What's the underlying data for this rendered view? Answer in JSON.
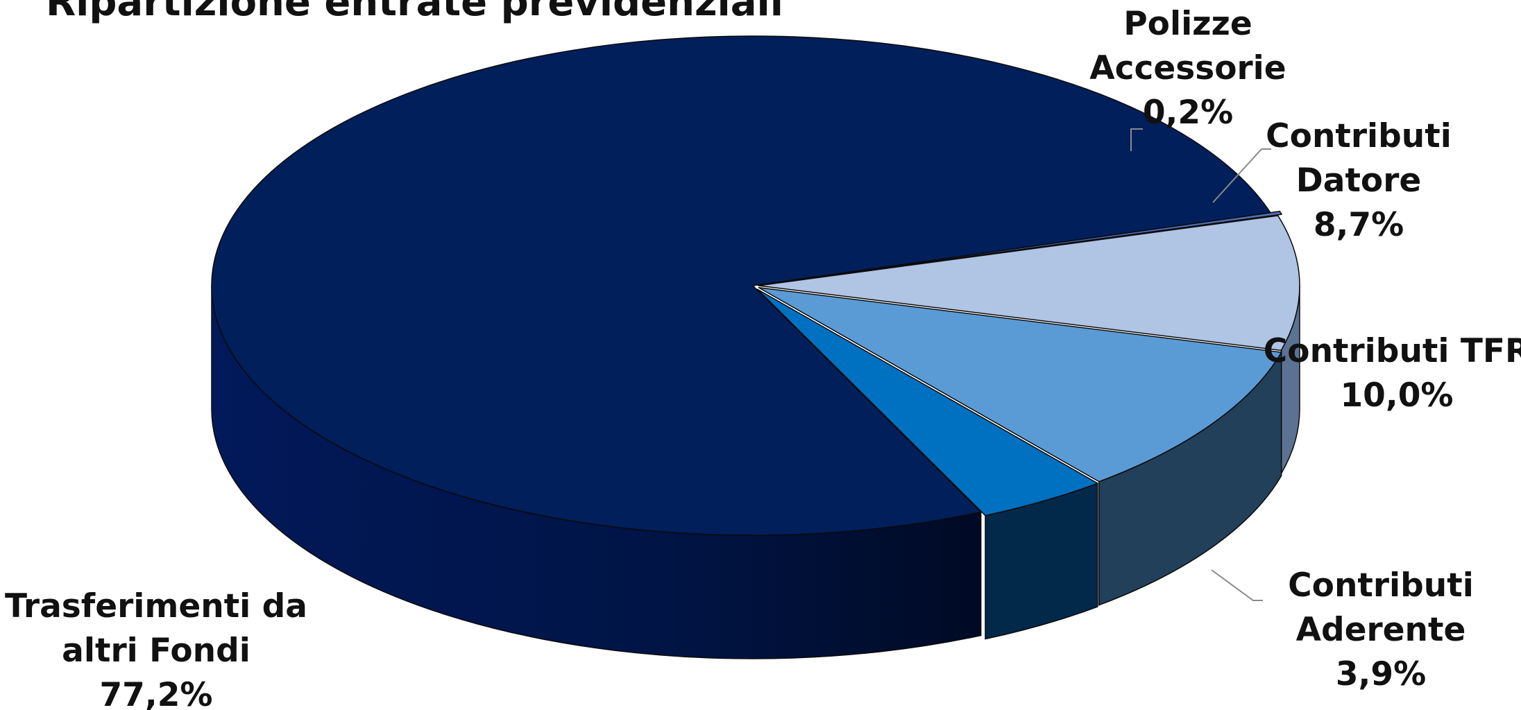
{
  "chart_data": {
    "type": "pie",
    "style": "3d-exploded",
    "title": "Ripartizione entrate previdenziali",
    "slices": [
      {
        "name": "Polizze Accessorie",
        "label_lines": [
          "Polizze",
          "Accessorie"
        ],
        "value": 0.2,
        "value_label": "0,2%",
        "color": "#4a6fb5",
        "side_color": "#23386a"
      },
      {
        "name": "Contributi Datore",
        "label_lines": [
          "Contributi",
          "Datore"
        ],
        "value": 8.7,
        "value_label": "8,7%",
        "color": "#b0c4e4",
        "side_color": "#5c7292"
      },
      {
        "name": "Contributi TFR",
        "label_lines": [
          "Contributi TFR"
        ],
        "value": 10.0,
        "value_label": "10,0%",
        "color": "#5b9bd5",
        "side_color": "#22405a"
      },
      {
        "name": "Contributi Aderente",
        "label_lines": [
          "Contributi",
          "Aderente"
        ],
        "value": 3.9,
        "value_label": "3,9%",
        "color": "#0070c0",
        "side_color": "#02284a"
      },
      {
        "name": "Trasferimenti da altri Fondi",
        "label_lines": [
          "Trasferimenti da",
          "altri Fondi"
        ],
        "value": 77.2,
        "value_label": "77,2%",
        "color": "#001f5b",
        "side_color": "#000f2e"
      }
    ]
  }
}
